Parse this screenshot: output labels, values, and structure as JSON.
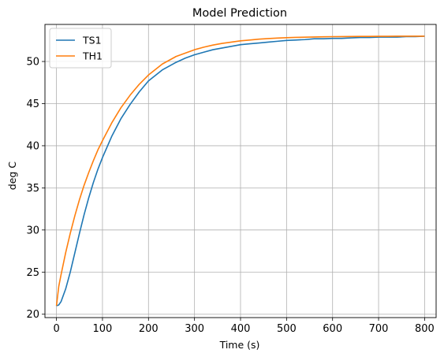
{
  "chart_data": {
    "type": "line",
    "title": "Model Prediction",
    "xlabel": "Time (s)",
    "ylabel": "deg C",
    "xlim": [
      -25,
      825
    ],
    "ylim": [
      19.6,
      54.4
    ],
    "xticks": [
      0,
      100,
      200,
      300,
      400,
      500,
      600,
      700,
      800
    ],
    "yticks": [
      20,
      25,
      30,
      35,
      40,
      45,
      50
    ],
    "grid": true,
    "legend_position": "top-left",
    "series": [
      {
        "name": "TS1",
        "color": "#1f77b4",
        "x": [
          0,
          5,
          10,
          20,
          30,
          40,
          50,
          60,
          70,
          80,
          90,
          100,
          120,
          140,
          160,
          180,
          200,
          230,
          260,
          280,
          300,
          320,
          340,
          360,
          380,
          400,
          420,
          440,
          460,
          480,
          500,
          520,
          540,
          560,
          580,
          600,
          620,
          640,
          660,
          680,
          700,
          720,
          740,
          760,
          780,
          800
        ],
        "y": [
          21.0,
          21.1,
          21.5,
          23.0,
          25.0,
          27.3,
          29.6,
          31.8,
          33.8,
          35.6,
          37.2,
          38.6,
          41.1,
          43.2,
          44.9,
          46.4,
          47.7,
          49.0,
          49.9,
          50.4,
          50.8,
          51.1,
          51.4,
          51.6,
          51.8,
          52.0,
          52.1,
          52.2,
          52.3,
          52.4,
          52.5,
          52.55,
          52.6,
          52.7,
          52.7,
          52.75,
          52.75,
          52.8,
          52.85,
          52.85,
          52.9,
          52.9,
          52.9,
          52.95,
          52.95,
          53.0
        ]
      },
      {
        "name": "TH1",
        "color": "#ff7f0e",
        "x": [
          0,
          5,
          10,
          20,
          30,
          40,
          50,
          60,
          70,
          80,
          90,
          100,
          120,
          140,
          160,
          180,
          200,
          230,
          260,
          280,
          300,
          320,
          340,
          360,
          380,
          400,
          420,
          440,
          460,
          480,
          500,
          520,
          540,
          560,
          580,
          600,
          620,
          640,
          660,
          680,
          700,
          720,
          740,
          760,
          780,
          800
        ],
        "y": [
          21.0,
          23.3,
          24.7,
          27.3,
          29.6,
          31.7,
          33.6,
          35.3,
          36.8,
          38.2,
          39.5,
          40.6,
          42.7,
          44.5,
          46.0,
          47.3,
          48.4,
          49.7,
          50.6,
          51.0,
          51.4,
          51.7,
          51.95,
          52.15,
          52.3,
          52.45,
          52.55,
          52.65,
          52.72,
          52.78,
          52.83,
          52.86,
          52.89,
          52.91,
          52.93,
          52.95,
          52.96,
          52.97,
          52.98,
          52.98,
          52.99,
          52.99,
          53.0,
          53.0,
          53.0,
          53.0
        ]
      }
    ]
  }
}
